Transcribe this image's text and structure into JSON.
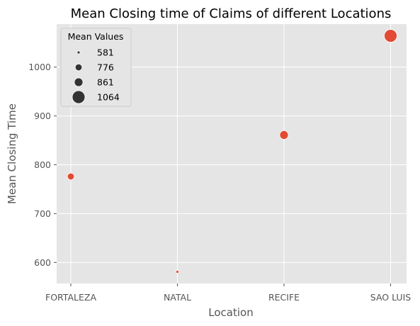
{
  "chart_data": {
    "type": "scatter",
    "title": "Mean Closing time of Claims of different Locations",
    "xlabel": "Location",
    "ylabel": "Mean Closing Time",
    "categories": [
      "FORTALEZA",
      "NATAL",
      "RECIFE",
      "SAO LUIS"
    ],
    "values": [
      776,
      581,
      861,
      1064
    ],
    "yticks": [
      600,
      700,
      800,
      900,
      1000
    ],
    "ylim": [
      557,
      1088
    ],
    "grid": true,
    "point_color": "#E24A33",
    "legend": {
      "title": "Mean Values",
      "placement": "top-left",
      "entries": [
        "581",
        "776",
        "861",
        "1064"
      ],
      "size_values": [
        581,
        776,
        861,
        1064
      ]
    }
  }
}
